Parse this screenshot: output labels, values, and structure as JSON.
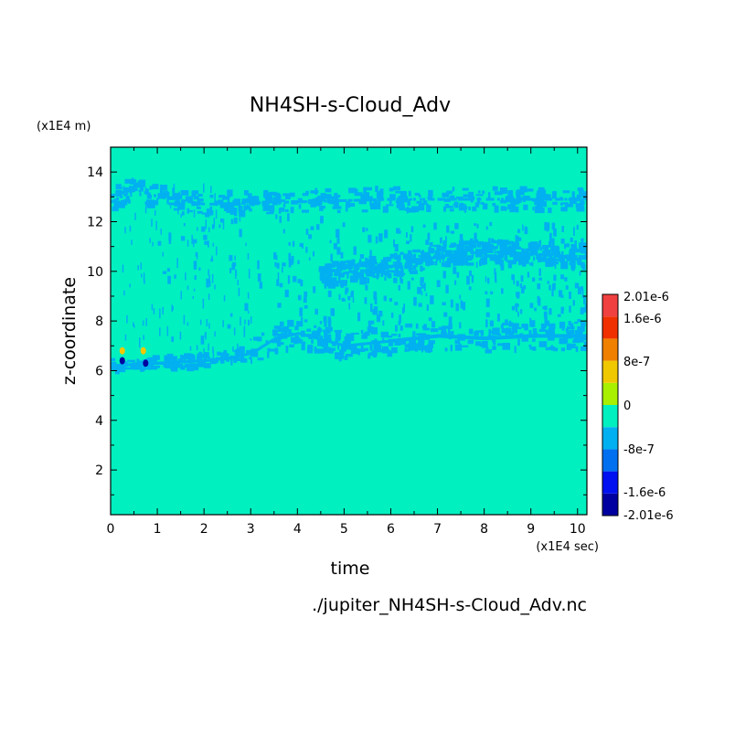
{
  "chart_data": {
    "type": "heatmap",
    "title": "NH4SH-s-Cloud_Adv",
    "xlabel": "time",
    "ylabel": "z-coordinate",
    "x_unit": "(x1E4 sec)",
    "y_unit": "(x1E4 m)",
    "xlim": [
      0,
      10.2
    ],
    "ylim": [
      0.2,
      15
    ],
    "x_ticks": [
      0,
      1,
      2,
      3,
      4,
      5,
      6,
      7,
      8,
      9,
      10
    ],
    "y_ticks": [
      2,
      4,
      6,
      8,
      10,
      12,
      14
    ],
    "background_value": 0,
    "colorbar": {
      "labels": [
        "2.01e-6",
        "1.6e-6",
        "8e-7",
        "0",
        "-8e-7",
        "-1.6e-6",
        "-2.01e-6"
      ],
      "levels": [
        -2.01e-06,
        -1.6e-06,
        -1.2e-06,
        -8e-07,
        -4e-07,
        0,
        4e-07,
        8e-07,
        1.2e-06,
        1.6e-06,
        2.01e-06
      ],
      "colors": [
        "#0000a0",
        "#0010f0",
        "#0070f0",
        "#00b0f0",
        "#00f0c0",
        "#a8f000",
        "#f0c800",
        "#f08000",
        "#f03000",
        "#f04040"
      ]
    },
    "bands": [
      {
        "name": "lower cloud band",
        "points": [
          [
            0,
            6.2
          ],
          [
            1,
            6.3
          ],
          [
            2,
            6.4
          ],
          [
            2.5,
            6.5
          ],
          [
            3,
            6.7
          ],
          [
            3.5,
            7.3
          ],
          [
            4,
            7.5
          ],
          [
            5,
            7.0
          ],
          [
            6,
            7.2
          ],
          [
            7,
            7.4
          ],
          [
            8,
            7.3
          ],
          [
            9,
            7.4
          ],
          [
            10,
            7.4
          ],
          [
            10.2,
            7.4
          ]
        ],
        "value": -4e-07
      },
      {
        "name": "middle cloud band",
        "points": [
          [
            4.5,
            9.8
          ],
          [
            6,
            10.2
          ],
          [
            7,
            10.6
          ],
          [
            8,
            10.8
          ],
          [
            9,
            10.7
          ],
          [
            10,
            10.6
          ],
          [
            10.2,
            10.6
          ]
        ],
        "value": -4e-07
      },
      {
        "name": "upper cloud band",
        "points": [
          [
            0,
            12.8
          ],
          [
            0.5,
            13.3
          ],
          [
            1,
            13.0
          ],
          [
            2,
            12.7
          ],
          [
            4,
            12.8
          ],
          [
            6,
            12.9
          ],
          [
            8,
            12.9
          ],
          [
            10.2,
            12.9
          ]
        ],
        "value": -4e-07
      }
    ],
    "extrema": [
      {
        "x": 0.25,
        "z": 6.4,
        "value": -1.6e-06
      },
      {
        "x": 0.75,
        "z": 6.3,
        "value": -1.6e-06
      },
      {
        "x": 0.25,
        "z": 6.8,
        "value": 8e-07
      },
      {
        "x": 0.7,
        "z": 6.8,
        "value": 8e-07
      }
    ]
  },
  "footer": {
    "filename": "./jupiter_NH4SH-s-Cloud_Adv.nc"
  }
}
